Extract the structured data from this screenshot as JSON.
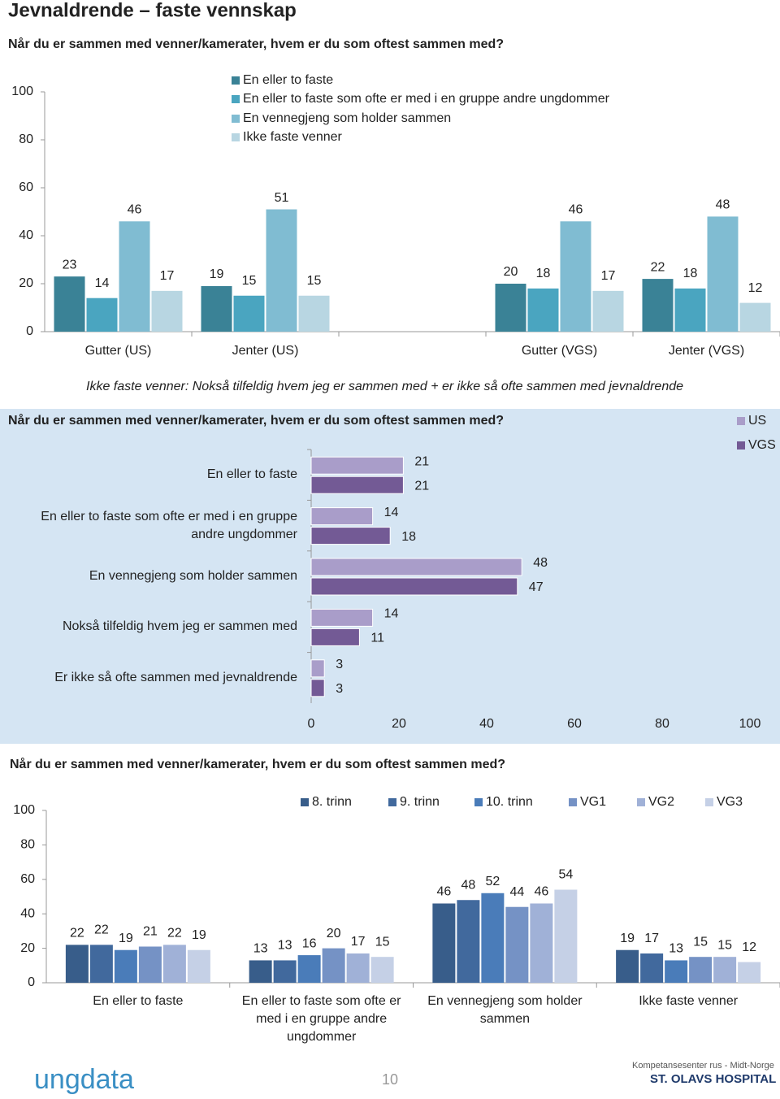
{
  "header": {
    "title": "Jevnaldrende – faste vennskap"
  },
  "chart_data": [
    {
      "type": "bar",
      "title": "Når du er sammen med venner/kamerater, hvem er du som oftest sammen med?",
      "categories": [
        "Gutter (US)",
        "Jenter (US)",
        null,
        "Gutter (VGS)",
        "Jenter (VGS)"
      ],
      "series": [
        {
          "name": "En eller to faste",
          "color": "#3a8296",
          "values": [
            23,
            19,
            null,
            20,
            22
          ]
        },
        {
          "name": "En eller to faste som ofte er med i en gruppe andre ungdommer",
          "color": "#4aa5c0",
          "values": [
            14,
            15,
            null,
            18,
            18
          ]
        },
        {
          "name": "En vennegjeng som holder sammen",
          "color": "#80bcd2",
          "values": [
            46,
            51,
            null,
            46,
            48
          ]
        },
        {
          "name": "Ikke faste venner",
          "color": "#b8d6e2",
          "values": [
            17,
            15,
            null,
            17,
            12
          ]
        }
      ],
      "ylim": [
        0,
        100
      ],
      "yticks": [
        0,
        20,
        40,
        60,
        80,
        100
      ],
      "note": "Ikke faste venner: Nokså tilfeldig hvem jeg er sammen med + er ikke så ofte sammen med jevnaldrende"
    },
    {
      "type": "hbar",
      "title": "Når du er sammen med venner/kamerater, hvem er du som oftest sammen med?",
      "categories": [
        "En eller to faste",
        "En eller to faste som ofte er med i en gruppe andre ungdommer",
        "En vennegjeng som holder sammen",
        "Nokså tilfeldig hvem jeg er sammen med",
        "Er ikke så ofte sammen med jevnaldrende"
      ],
      "series": [
        {
          "name": "US",
          "color": "#a99dc9",
          "values": [
            21,
            14,
            48,
            14,
            3
          ]
        },
        {
          "name": "VGS",
          "color": "#735a95",
          "values": [
            21,
            18,
            47,
            11,
            3
          ]
        }
      ],
      "xlim": [
        0,
        100
      ],
      "xticks": [
        0,
        20,
        40,
        60,
        80,
        100
      ]
    },
    {
      "type": "bar",
      "title": "Når du er sammen med venner/kamerater, hvem er du som oftest sammen med?",
      "categories": [
        "En eller to faste",
        "En eller to faste som ofte er med i en gruppe andre ungdommer",
        "En vennegjeng som holder sammen",
        "Ikke faste venner"
      ],
      "series": [
        {
          "name": "8. trinn",
          "color": "#385d8a",
          "values": [
            22,
            13,
            46,
            19
          ]
        },
        {
          "name": "9. trinn",
          "color": "#41699d",
          "values": [
            22,
            13,
            48,
            17
          ]
        },
        {
          "name": "10. trinn",
          "color": "#4a7cb9",
          "values": [
            19,
            16,
            52,
            13
          ]
        },
        {
          "name": "VG1",
          "color": "#7592c5",
          "values": [
            21,
            20,
            44,
            15
          ]
        },
        {
          "name": "VG2",
          "color": "#a0b1d7",
          "values": [
            22,
            17,
            46,
            15
          ]
        },
        {
          "name": "VG3",
          "color": "#c5d0e6",
          "values": [
            19,
            15,
            54,
            12
          ]
        }
      ],
      "ylim": [
        0,
        100
      ],
      "yticks": [
        0,
        20,
        40,
        60,
        80,
        100
      ]
    }
  ],
  "footer": {
    "logo_left": "ungdata",
    "page_number": "10",
    "logo_right_line1": "Kompetansesenter rus - Midt-Norge",
    "logo_right_line2": "ST. OLAVS HOSPITAL"
  }
}
